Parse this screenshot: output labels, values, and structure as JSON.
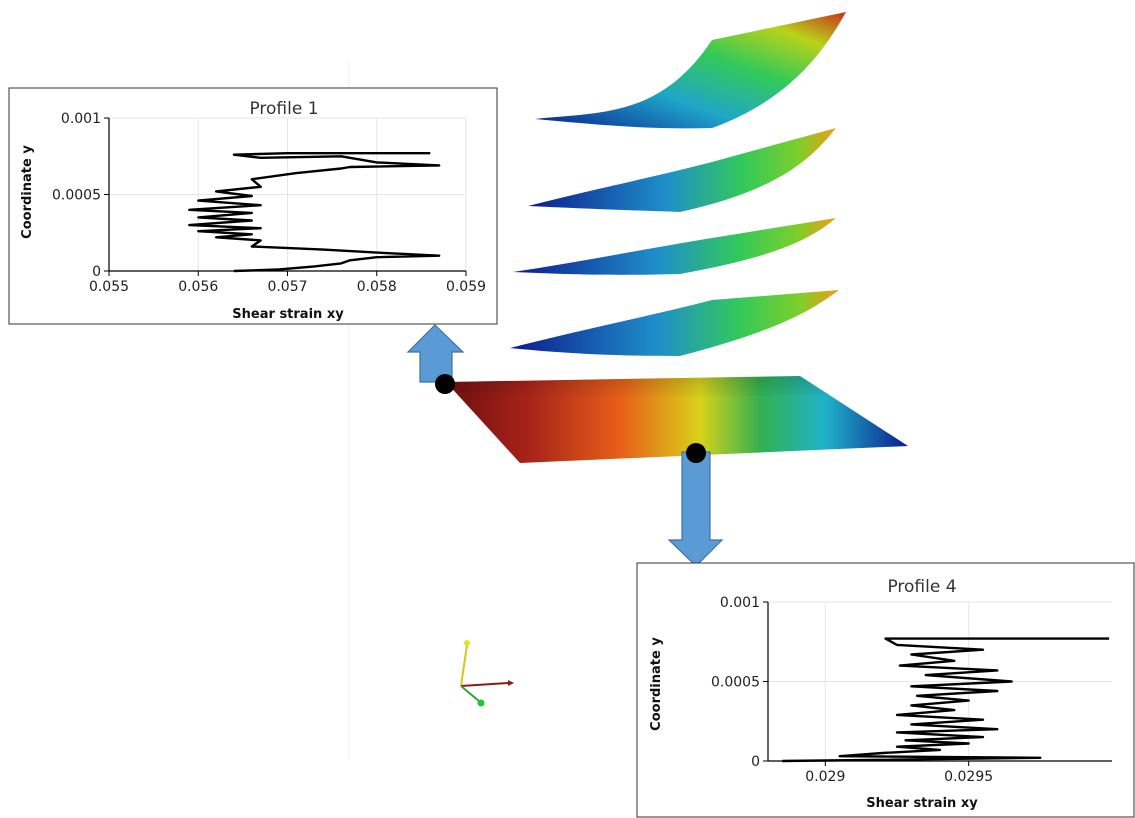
{
  "colors": {
    "curve": "#000000",
    "arrow": "#5b9bd5",
    "arrow_edge": "#41719c",
    "grid": "#e6e6e6",
    "colormap": [
      "#0b1b8e",
      "#1565c0",
      "#1fb3c9",
      "#33c95a",
      "#c8d21a",
      "#f39c12",
      "#d0311a",
      "#7a1212"
    ]
  },
  "scene": {
    "markers": [
      "dot-marker",
      "dot-marker"
    ],
    "arrows": [
      "up-arrow-icon",
      "down-arrow-icon"
    ],
    "axes_triad": "axes-triad-icon"
  },
  "chart_data": [
    {
      "type": "line",
      "title": "Profile 1",
      "xlabel": "Shear strain xy",
      "ylabel": "Coordinate y",
      "xlim": [
        0.055,
        0.059
      ],
      "ylim": [
        0,
        0.001
      ],
      "xticks": [
        "0.055",
        "0.056",
        "0.057",
        "0.058",
        "0.059"
      ],
      "yticks": [
        "0",
        "0.0005",
        "0.001"
      ],
      "grid": true,
      "legend": "none",
      "series": [
        {
          "x": [
            0.0586,
            0.057,
            0.0564,
            0.0567,
            0.0576,
            0.058,
            0.0587,
            0.0577,
            0.0576,
            0.0571,
            0.0566,
            0.0567,
            0.0562,
            0.0566,
            0.056,
            0.0567,
            0.0559,
            0.0566,
            0.056,
            0.0566,
            0.0559,
            0.0567,
            0.056,
            0.0566,
            0.0562,
            0.0567,
            0.0566,
            0.0574,
            0.058,
            0.0587,
            0.058,
            0.0577,
            0.0576,
            0.0573,
            0.0569,
            0.0564
          ],
          "y": [
            0.00077,
            0.00077,
            0.00076,
            0.00074,
            0.00075,
            0.00071,
            0.00069,
            0.00068,
            0.00067,
            0.00064,
            0.0006,
            0.00055,
            0.00052,
            0.00049,
            0.00046,
            0.00043,
            0.0004,
            0.00038,
            0.00035,
            0.00033,
            0.0003,
            0.00028,
            0.00026,
            0.00024,
            0.00022,
            0.0002,
            0.00016,
            0.00014,
            0.00012,
            0.0001,
            9e-05,
            7e-05,
            5e-05,
            3e-05,
            1e-05,
            0.0
          ]
        }
      ]
    },
    {
      "type": "line",
      "title": "Profile 4",
      "xlabel": "Shear strain xy",
      "ylabel": "Coordinate y",
      "xlim": [
        0.0288,
        0.03
      ],
      "ylim": [
        0,
        0.001
      ],
      "xticks": [
        "0.029",
        "0.0295"
      ],
      "yticks": [
        "0",
        "0.0005",
        "0.001"
      ],
      "grid": true,
      "legend": "none",
      "series": [
        {
          "x": [
            0.02999,
            0.02921,
            0.02925,
            0.02955,
            0.0293,
            0.02945,
            0.02926,
            0.0296,
            0.02935,
            0.02965,
            0.0293,
            0.0296,
            0.02932,
            0.0295,
            0.0293,
            0.02945,
            0.02925,
            0.02955,
            0.0293,
            0.0296,
            0.02925,
            0.02955,
            0.02928,
            0.0295,
            0.02925,
            0.0294,
            0.0292,
            0.02905,
            0.02975,
            0.02885
          ],
          "y": [
            0.00077,
            0.00077,
            0.00073,
            0.0007,
            0.00067,
            0.00063,
            0.0006,
            0.00057,
            0.00054,
            0.0005,
            0.00047,
            0.00044,
            0.00041,
            0.00038,
            0.00035,
            0.00032,
            0.00029,
            0.00026,
            0.00023,
            0.0002,
            0.00018,
            0.00015,
            0.00013,
            0.00011,
            9e-05,
            7e-05,
            5e-05,
            3e-05,
            2e-05,
            0.0
          ]
        }
      ]
    }
  ]
}
